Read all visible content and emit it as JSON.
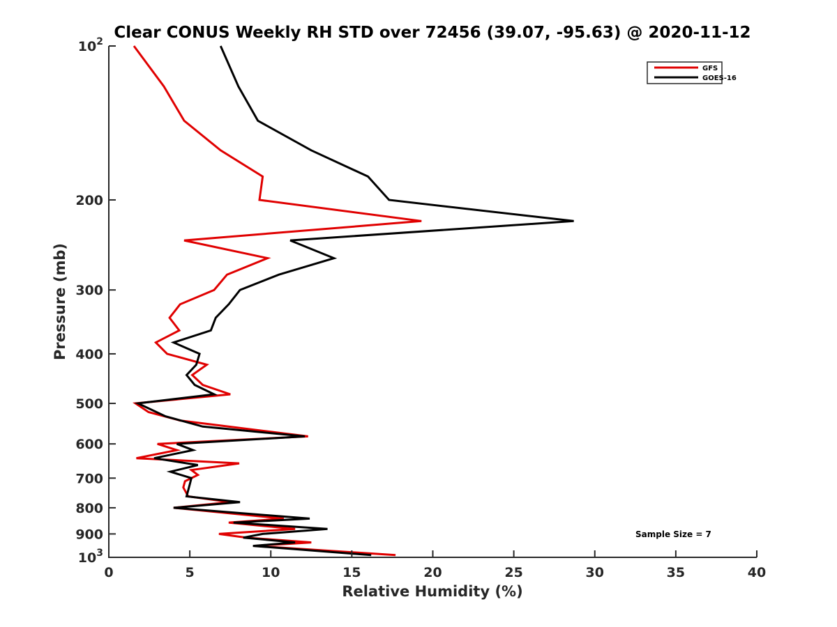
{
  "chart_data": {
    "type": "line",
    "title": "Clear CONUS Weekly RH STD over 72456 (39.07, -95.63) @ 2020-11-12",
    "xlabel": "Relative Humidity (%)",
    "ylabel": "Pressure (mb)",
    "xlim": [
      0,
      40
    ],
    "ylim": [
      100,
      1000
    ],
    "yscale": "log",
    "y_reversed": true,
    "grid": false,
    "x_ticks": [
      0,
      5,
      10,
      15,
      20,
      25,
      30,
      35,
      40
    ],
    "x_tick_labels": [
      "0",
      "5",
      "10",
      "15",
      "20",
      "25",
      "30",
      "35",
      "40"
    ],
    "y_ticks": [
      100,
      200,
      300,
      400,
      500,
      600,
      700,
      800,
      900,
      1000
    ],
    "y_tick_labels": [
      {
        "base": "10",
        "exp": "2"
      },
      {
        "text": "200"
      },
      {
        "text": "300"
      },
      {
        "text": "400"
      },
      {
        "text": "500"
      },
      {
        "text": "600"
      },
      {
        "text": "700"
      },
      {
        "text": "800"
      },
      {
        "text": "900"
      },
      {
        "base": "10",
        "exp": "3"
      }
    ],
    "legend": {
      "position": "top-right",
      "entries": [
        "GFS",
        "GOES-16"
      ]
    },
    "annotation": "Sample Size = 7",
    "series": [
      {
        "name": "GFS",
        "color": "#e00000",
        "points": [
          [
            1.55,
            100
          ],
          [
            3.4,
            120
          ],
          [
            4.65,
            140
          ],
          [
            6.9,
            160
          ],
          [
            9.5,
            180
          ],
          [
            9.3,
            200
          ],
          [
            19.3,
            220
          ],
          [
            4.65,
            240
          ],
          [
            9.8,
            260
          ],
          [
            7.3,
            280
          ],
          [
            6.5,
            300
          ],
          [
            4.4,
            320
          ],
          [
            3.75,
            340
          ],
          [
            4.35,
            360
          ],
          [
            2.9,
            380
          ],
          [
            3.6,
            400
          ],
          [
            6.05,
            420
          ],
          [
            5.15,
            440
          ],
          [
            5.8,
            460
          ],
          [
            7.5,
            480
          ],
          [
            1.65,
            500
          ],
          [
            2.45,
            520
          ],
          [
            4.4,
            540
          ],
          [
            12.3,
            580
          ],
          [
            3.0,
            600
          ],
          [
            4.2,
            617
          ],
          [
            1.7,
            640
          ],
          [
            8.05,
            655
          ],
          [
            5.1,
            675
          ],
          [
            5.5,
            690
          ],
          [
            4.7,
            710
          ],
          [
            4.6,
            730
          ],
          [
            4.9,
            760
          ],
          [
            7.5,
            780
          ],
          [
            4.0,
            800
          ],
          [
            10.8,
            840
          ],
          [
            7.4,
            855
          ],
          [
            11.5,
            880
          ],
          [
            6.8,
            900
          ],
          [
            8.5,
            915
          ],
          [
            12.5,
            935
          ],
          [
            9.0,
            950
          ],
          [
            17.7,
            990
          ]
        ]
      },
      {
        "name": "GOES-16",
        "color": "#000000",
        "points": [
          [
            6.9,
            100
          ],
          [
            8.0,
            120
          ],
          [
            9.2,
            140
          ],
          [
            12.5,
            160
          ],
          [
            16.0,
            180
          ],
          [
            17.3,
            200
          ],
          [
            28.7,
            220
          ],
          [
            11.2,
            240
          ],
          [
            13.9,
            260
          ],
          [
            10.5,
            280
          ],
          [
            8.1,
            300
          ],
          [
            7.4,
            320
          ],
          [
            6.6,
            340
          ],
          [
            6.3,
            360
          ],
          [
            4.0,
            380
          ],
          [
            5.6,
            400
          ],
          [
            5.4,
            420
          ],
          [
            4.8,
            440
          ],
          [
            5.3,
            460
          ],
          [
            6.5,
            480
          ],
          [
            1.8,
            500
          ],
          [
            3.5,
            530
          ],
          [
            5.8,
            555
          ],
          [
            12.1,
            580
          ],
          [
            4.2,
            600
          ],
          [
            5.2,
            617
          ],
          [
            2.8,
            640
          ],
          [
            5.5,
            660
          ],
          [
            3.8,
            680
          ],
          [
            5.1,
            700
          ],
          [
            5.0,
            720
          ],
          [
            4.8,
            760
          ],
          [
            8.1,
            780
          ],
          [
            4.0,
            800
          ],
          [
            12.4,
            840
          ],
          [
            7.7,
            855
          ],
          [
            13.5,
            880
          ],
          [
            9.5,
            900
          ],
          [
            8.3,
            915
          ],
          [
            11.5,
            935
          ],
          [
            8.9,
            950
          ],
          [
            16.2,
            990
          ]
        ]
      }
    ]
  }
}
